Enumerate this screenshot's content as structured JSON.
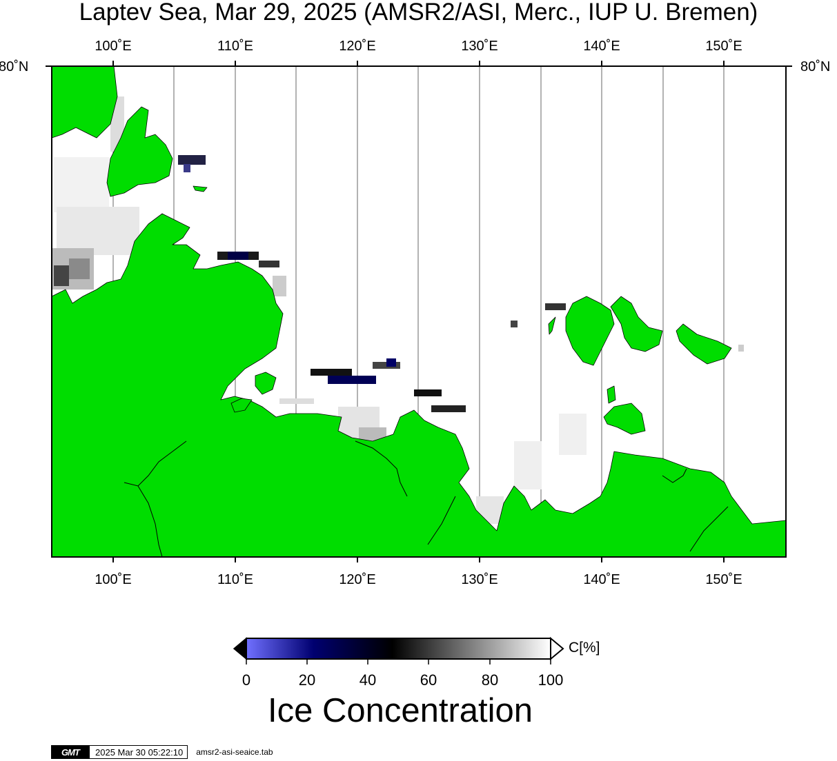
{
  "title": "Laptev Sea, Mar 29, 2025 (AMSR2/ASI, Merc., IUP U. Bremen)",
  "map": {
    "lon_labels": [
      "100˚E",
      "110˚E",
      "120˚E",
      "130˚E",
      "140˚E",
      "150˚E"
    ],
    "lat_label": "80˚N",
    "land_color": "#00dd00",
    "open_water_color": "#ffffff",
    "gridline_color": "#000000"
  },
  "colorbar": {
    "unit": "C[%]",
    "ticks": [
      "0",
      "20",
      "40",
      "60",
      "80",
      "100"
    ],
    "title": "Ice Concentration",
    "colors": [
      "#7070ff",
      "#000060",
      "#000000",
      "#ffffff"
    ]
  },
  "footer": {
    "logo": "GMT",
    "timestamp": "2025 Mar 30 05:22:10",
    "filename": "amsr2-asi-seaice.tab"
  }
}
